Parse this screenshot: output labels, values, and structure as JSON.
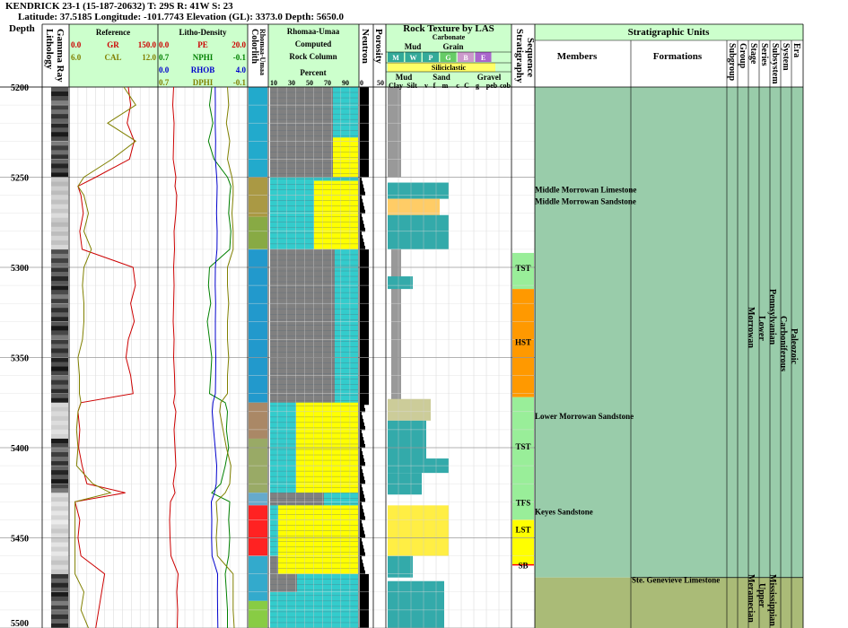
{
  "header": {
    "well": "KENDRICK 23-1 (15-187-20632) T: 29S R: 41W S: 23",
    "location": "Latitude: 37.5185 Longitude: -101.7743 Elevation (GL): 3373.0 Depth: 5650.0"
  },
  "colors": {
    "gr": "#cc0000",
    "cal": "#808000",
    "pe": "#cc0000",
    "nphi": "#008000",
    "rhob": "#0000cc",
    "dphi": "#808000",
    "track_bg": "#ccffcc",
    "sandstone": "#ffff00",
    "limestone": "#33cccc",
    "shale": "#808080",
    "strat_bg": "#99ccaa",
    "strat_bg2": "#aabb77",
    "tst": "#99ee99",
    "hst": "#ff9900",
    "lst": "#ffff00",
    "sb": "#ff0000"
  },
  "depth_track": {
    "label": "Depth",
    "ticks": [
      "5200",
      "5250",
      "5300",
      "5350",
      "5400",
      "5450",
      "5500"
    ]
  },
  "lithology_track": {
    "label1": "Lithology",
    "label2": "Gamma Ray"
  },
  "reference_track": {
    "title": "Reference",
    "curves": [
      {
        "min": "0.0",
        "name": "GR",
        "max": "150.0"
      },
      {
        "min": "6.0",
        "name": "CAL",
        "max": "12.0"
      }
    ]
  },
  "litho_track": {
    "title": "Litho-Density",
    "curves": [
      {
        "min": "0.0",
        "name": "PE",
        "max": "20.0"
      },
      {
        "min": "0.7",
        "name": "NPHI",
        "max": "-0.1"
      },
      {
        "min": "0.0",
        "name": "RHOB",
        "max": "4.0"
      },
      {
        "min": "0.7",
        "name": "DPHI",
        "max": "-0.1"
      }
    ]
  },
  "colorlith_track": {
    "label1": "Colorlith",
    "label2": "Rhomaa-Umaa"
  },
  "rock_column_track": {
    "title": "Rhomaa-Umaa",
    "line1": "Computed",
    "line2": "Rock Column",
    "line3": "Percent",
    "ticks": [
      "10",
      "30",
      "50",
      "70",
      "90"
    ]
  },
  "neutron_track": {
    "label": "Neutron",
    "ticks": [
      "0",
      "50"
    ]
  },
  "porosity_track": {
    "label": "Porosity"
  },
  "texture_track": {
    "title": "Rock Texture by LAS",
    "carbonate": "Carbonate",
    "mud": "Mud",
    "grain": "Grain",
    "carb_classes": [
      "M",
      "W",
      "P",
      "G",
      "B",
      "E"
    ],
    "siliciclastic": "Siliciclastic",
    "mud2": "Mud",
    "sand": "Sand",
    "gravel": "Gravel",
    "sil_classes": [
      "Clay",
      "Silt",
      "v",
      "f",
      "m",
      "c",
      "C",
      "g",
      "peb",
      "cob"
    ],
    "sil_sub": [
      "f",
      "m/c"
    ]
  },
  "sequence_track": {
    "label1": "Sequence",
    "label2": "Stratigraphy",
    "labels": [
      "TST",
      "HST",
      "TST",
      "TFS",
      "LST",
      "SB"
    ]
  },
  "strat_units": {
    "title": "Stratigraphic Units",
    "col_members": "Members",
    "col_formations": "Formations",
    "col_labels": [
      "Subgroup",
      "Group",
      "Stage",
      "Series",
      "Subsystem",
      "System",
      "Era"
    ],
    "members": [
      {
        "name": "Middle Morrowan Limestone",
        "depth": 5257
      },
      {
        "name": "Middle Morrowan Sandstone",
        "depth": 5263.5
      },
      {
        "name": "Lower Morrowan Sandstone",
        "depth": 5382.5
      },
      {
        "name": "Keyes Sandstone",
        "depth": 5435.5
      }
    ],
    "formations": [
      {
        "name": "Ste. Genevieve Limestone",
        "depth": 5473.5
      }
    ],
    "units": {
      "stage": [
        "Morrowan",
        "Meramecian"
      ],
      "series": [
        "Lower",
        "Upper"
      ],
      "subsystem": [
        "Pennsylvanian",
        "Mississippian"
      ],
      "system": "Carboniferous",
      "era": "Paleozoic"
    }
  },
  "chart_data": {
    "type": "line",
    "depth_range": [
      5200,
      5500
    ],
    "depth_unit": "ft",
    "x": [
      5200,
      5210,
      5220,
      5230,
      5240,
      5250,
      5255,
      5260,
      5270,
      5280,
      5290,
      5300,
      5310,
      5320,
      5330,
      5340,
      5350,
      5360,
      5370,
      5375,
      5380,
      5390,
      5400,
      5410,
      5420,
      5425,
      5430,
      5440,
      5450,
      5460,
      5470,
      5480,
      5490,
      5500
    ],
    "series": [
      {
        "name": "GR",
        "range": [
          0,
          150
        ],
        "values": [
          100,
          104,
          98,
          110,
          102,
          45,
          15,
          20,
          24,
          18,
          22,
          108,
          112,
          104,
          110,
          100,
          96,
          104,
          108,
          20,
          15,
          18,
          16,
          22,
          30,
          95,
          10,
          18,
          15,
          20,
          60,
          55,
          50,
          45
        ]
      },
      {
        "name": "CAL",
        "range": [
          6,
          12
        ],
        "values": [
          9.7,
          10.5,
          8.6,
          10.5,
          8.9,
          7.0,
          6.6,
          7.0,
          7.3,
          7.0,
          7.5,
          7.0,
          6.9,
          7.0,
          7.0,
          6.9,
          6.6,
          6.7,
          6.7,
          6.8,
          6.6,
          6.5,
          6.6,
          6.5,
          7.6,
          8.8,
          6.4,
          6.4,
          6.4,
          6.4,
          6.4,
          7.0,
          6.8,
          7.3
        ]
      },
      {
        "name": "PE",
        "range": [
          0,
          20
        ],
        "values": [
          3.5,
          3.3,
          3.6,
          3.5,
          3.4,
          4.0,
          3.8,
          4.2,
          4.0,
          3.6,
          3.7,
          3.5,
          3.6,
          3.5,
          3.4,
          3.6,
          3.5,
          3.7,
          3.8,
          3.5,
          4.0,
          3.6,
          3.8,
          4.0,
          3.4,
          3.8,
          2.8,
          2.6,
          2.7,
          2.9,
          4.5,
          4.2,
          4.4,
          4.3
        ]
      },
      {
        "name": "NPHI",
        "range": [
          0.7,
          -0.1
        ],
        "values": [
          0.22,
          0.24,
          0.21,
          0.25,
          0.2,
          0.08,
          0.05,
          0.06,
          0.07,
          0.05,
          0.06,
          0.24,
          0.25,
          0.23,
          0.26,
          0.24,
          0.22,
          0.23,
          0.24,
          0.1,
          0.08,
          0.09,
          0.07,
          0.1,
          0.14,
          0.22,
          0.06,
          0.07,
          0.06,
          0.07,
          0.1,
          0.09,
          0.08,
          0.08
        ]
      },
      {
        "name": "RHOB",
        "range": [
          0,
          4
        ],
        "values": [
          2.55,
          2.56,
          2.55,
          2.57,
          2.56,
          2.62,
          2.64,
          2.63,
          2.61,
          2.64,
          2.63,
          2.56,
          2.55,
          2.57,
          2.56,
          2.56,
          2.58,
          2.57,
          2.56,
          2.45,
          2.42,
          2.48,
          2.55,
          2.62,
          2.6,
          2.52,
          2.38,
          2.4,
          2.39,
          2.41,
          2.66,
          2.65,
          2.66,
          2.67
        ]
      },
      {
        "name": "DPHI",
        "range": [
          0.7,
          -0.1
        ],
        "values": [
          0.08,
          0.07,
          0.09,
          0.06,
          0.08,
          0.04,
          0.03,
          0.03,
          0.04,
          0.03,
          0.03,
          0.08,
          0.08,
          0.07,
          0.08,
          0.08,
          0.07,
          0.08,
          0.08,
          0.14,
          0.15,
          0.12,
          0.09,
          0.05,
          0.06,
          0.1,
          0.18,
          0.17,
          0.18,
          0.17,
          0.03,
          0.03,
          0.03,
          0.02
        ]
      }
    ]
  }
}
